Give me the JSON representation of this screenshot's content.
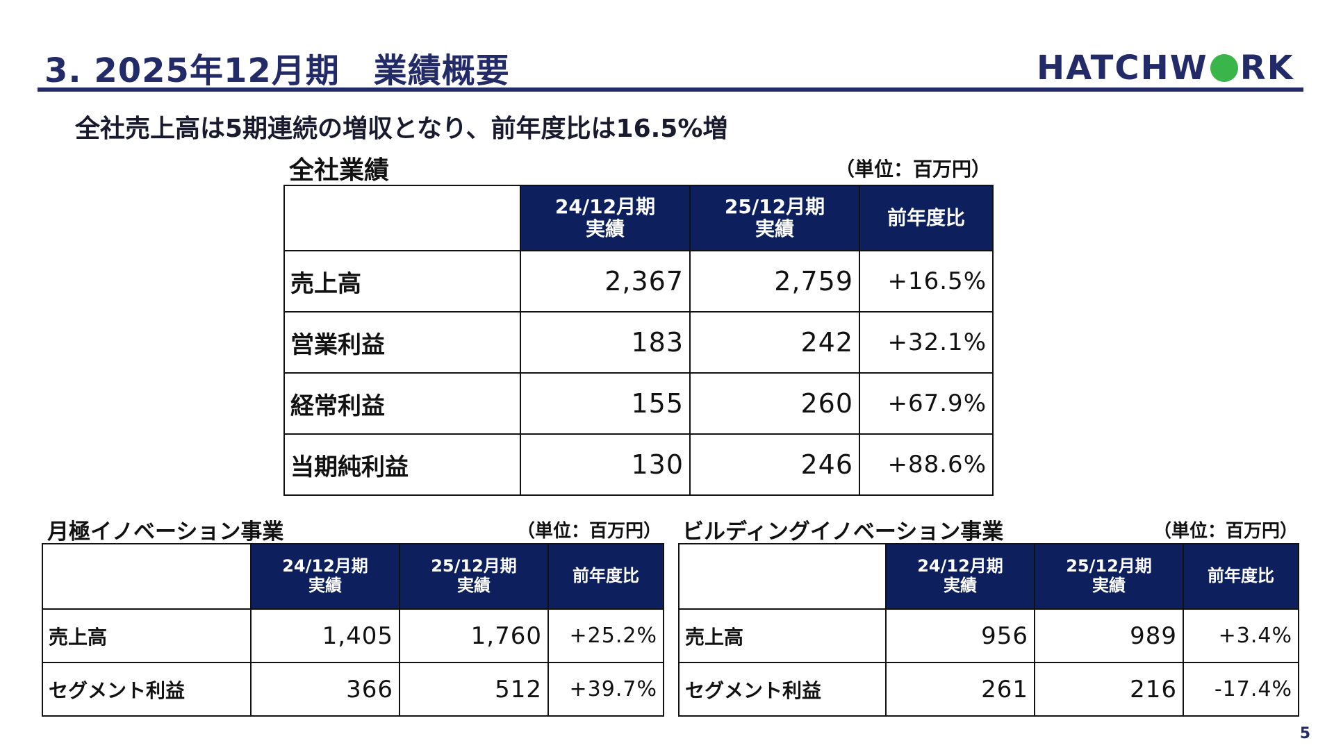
{
  "title": "3. 2025年12月期　業績概要",
  "logo": {
    "text_left": "HATCHW",
    "text_right": "RK",
    "dot_color": "#39b54a"
  },
  "headline": "全社売上高は5期連続の増収となり、前年度比は16.5%増",
  "colors": {
    "primary": "#232a68",
    "header_fill": "#0d1f5c"
  },
  "company": {
    "title": "全社業績",
    "unit": "（単位：百万円）",
    "columns": [
      {
        "line1": "24/12月期",
        "line2": "実績"
      },
      {
        "line1": "25/12月期",
        "line2": "実績"
      },
      {
        "line1": "前年度比",
        "line2": ""
      }
    ],
    "rows": [
      {
        "label": "売上高",
        "prev": "2,367",
        "curr": "2,759",
        "yoy": "+16.5%"
      },
      {
        "label": "営業利益",
        "prev": "183",
        "curr": "242",
        "yoy": "+32.1%"
      },
      {
        "label": "経常利益",
        "prev": "155",
        "curr": "260",
        "yoy": "+67.9%"
      },
      {
        "label": "当期純利益",
        "prev": "130",
        "curr": "246",
        "yoy": "+88.6%"
      }
    ]
  },
  "segments": [
    {
      "title": "月極イノベーション事業",
      "unit": "（単位：百万円）",
      "columns": [
        {
          "line1": "24/12月期",
          "line2": "実績"
        },
        {
          "line1": "25/12月期",
          "line2": "実績"
        },
        {
          "line1": "前年度比",
          "line2": ""
        }
      ],
      "rows": [
        {
          "label": "売上高",
          "prev": "1,405",
          "curr": "1,760",
          "yoy": "+25.2%"
        },
        {
          "label": "セグメント利益",
          "prev": "366",
          "curr": "512",
          "yoy": "+39.7%"
        }
      ]
    },
    {
      "title": "ビルディングイノベーション事業",
      "unit": "（単位：百万円）",
      "columns": [
        {
          "line1": "24/12月期",
          "line2": "実績"
        },
        {
          "line1": "25/12月期",
          "line2": "実績"
        },
        {
          "line1": "前年度比",
          "line2": ""
        }
      ],
      "rows": [
        {
          "label": "売上高",
          "prev": "956",
          "curr": "989",
          "yoy": "+3.4%"
        },
        {
          "label": "セグメント利益",
          "prev": "261",
          "curr": "216",
          "yoy": "-17.4%"
        }
      ]
    }
  ],
  "page_number": "5"
}
